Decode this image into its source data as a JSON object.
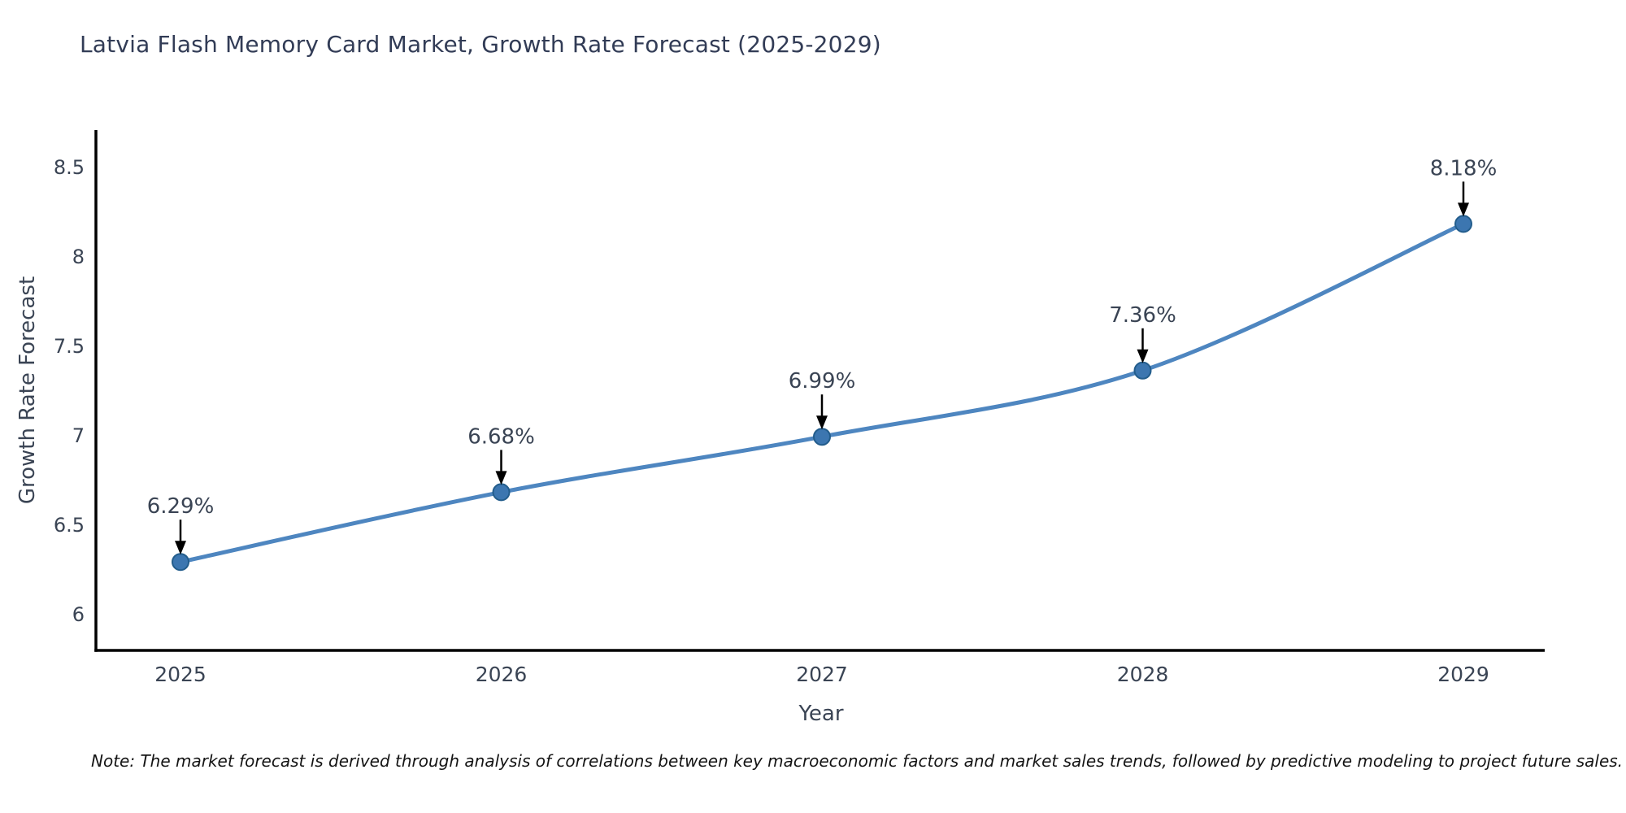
{
  "chart_data": {
    "type": "line",
    "title": "Latvia Flash Memory Card Market, Growth Rate Forecast (2025-2029)",
    "xlabel": "Year",
    "ylabel": "Growth Rate Forecast",
    "categories": [
      "2025",
      "2026",
      "2027",
      "2028",
      "2029"
    ],
    "series": [
      {
        "name": "Growth Rate Forecast",
        "values": [
          6.29,
          6.68,
          6.99,
          7.36,
          8.18
        ]
      }
    ],
    "point_labels": [
      "6.29%",
      "6.68%",
      "6.99%",
      "7.36%",
      "8.18%"
    ],
    "yticks": [
      6,
      6.5,
      7,
      7.5,
      8,
      8.5
    ],
    "ylim": [
      5.8,
      8.7
    ],
    "grid": false,
    "legend": "none",
    "smooth": true,
    "colors": {
      "line": "#4e86c0",
      "marker_fill": "#3c76b0",
      "marker_edge": "#235d8c",
      "axis_spine": "#000000",
      "tick_text": "#3a4454",
      "title_text": "#323c56",
      "annotation_arrow": "#000000",
      "annotation_text": "#3a4454"
    },
    "note": "Note: The market forecast is derived through analysis of correlations between key macroeconomic factors and market sales trends, followed by predictive modeling to project future sales."
  }
}
